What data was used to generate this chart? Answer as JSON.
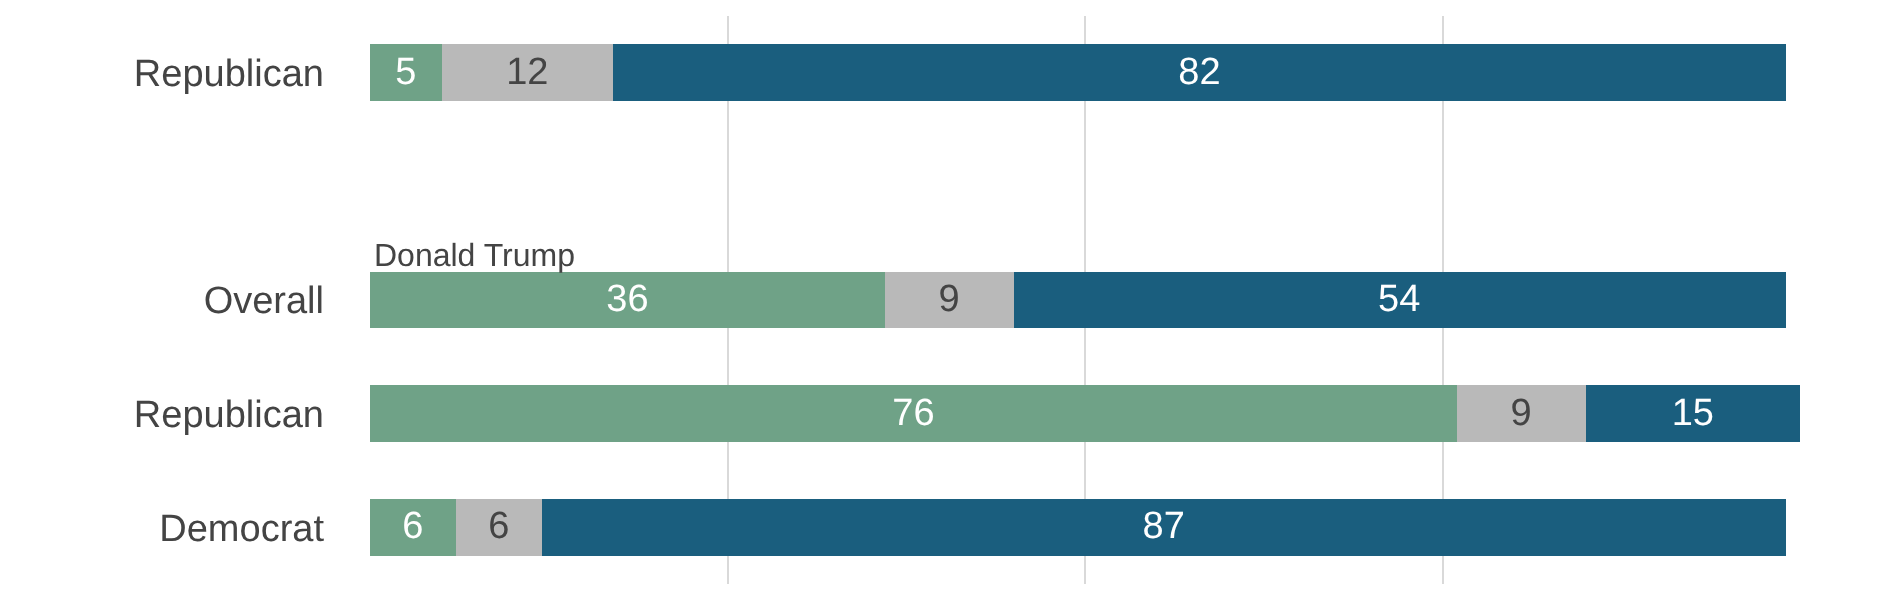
{
  "chart_data": {
    "type": "bar",
    "orientation": "horizontal",
    "stacked": true,
    "data_labels": true,
    "categories": [
      "Republican",
      null,
      "Overall",
      "Republican",
      "Democrat"
    ],
    "series": [
      {
        "color": "#6fa287",
        "values": [
          5,
          null,
          36,
          76,
          6
        ]
      },
      {
        "color": "#b9b9b9",
        "values": [
          12,
          null,
          9,
          9,
          6
        ]
      },
      {
        "color": "#1a5e7e",
        "values": [
          82,
          null,
          54,
          15,
          87
        ]
      }
    ],
    "annotations": [
      "Donald Trump"
    ],
    "xlim": [
      0,
      100
    ],
    "xticks": [
      {
        "value": 25,
        "label": null
      },
      {
        "value": 50,
        "label": null
      },
      {
        "value": 75,
        "label": null
      }
    ],
    "grid": "x",
    "tick_labels": "y"
  }
}
